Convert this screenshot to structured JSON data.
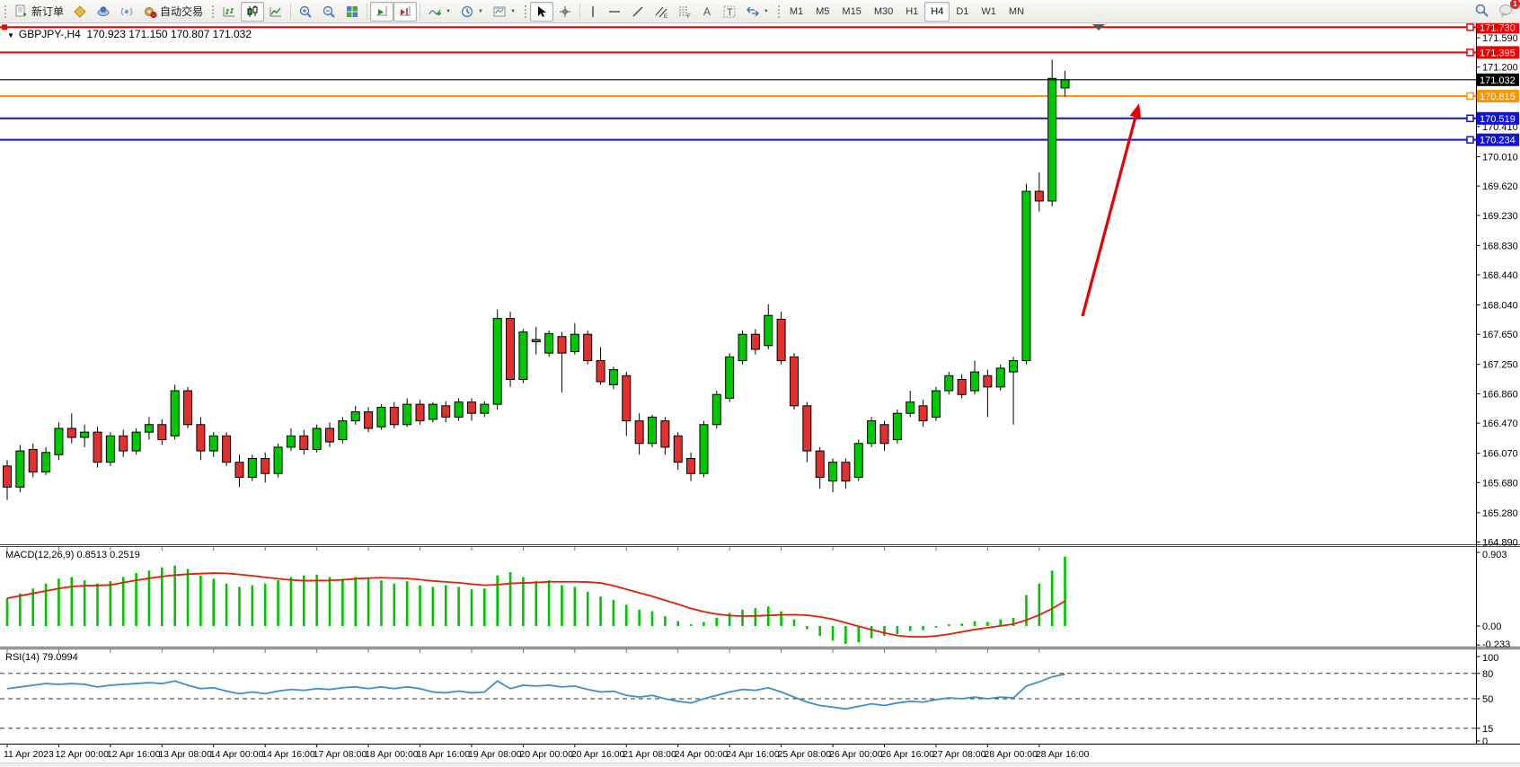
{
  "toolbar": {
    "new_order_label": "新订单",
    "algo_trading_label": "自动交易",
    "timeframes": [
      "M1",
      "M5",
      "M15",
      "M30",
      "H1",
      "H4",
      "D1",
      "W1",
      "MN"
    ],
    "active_timeframe": "H4",
    "notification_count": "1"
  },
  "header": {
    "symbol_period": "GBPJPY-,H4",
    "ohlc": "170.923 171.150 170.807 171.032"
  },
  "chart_data": {
    "type": "candlestick",
    "symbol": "GBPJPY-",
    "timeframe": "H4",
    "title": "GBPJPY-,H4",
    "current_candle": {
      "open": 170.923,
      "high": 171.15,
      "low": 170.807,
      "close": 171.032
    },
    "colors": {
      "up": "#00c800",
      "down": "#e03030",
      "wick": "#000000",
      "macd_hist": "#00c400",
      "macd_signal": "#e02000",
      "rsi_line": "#3e8ed0",
      "price_line": "#000000"
    },
    "y_ticks": [
      171.59,
      171.2,
      170.41,
      170.01,
      169.62,
      169.23,
      168.83,
      168.44,
      168.04,
      167.65,
      167.25,
      166.86,
      166.47,
      166.07,
      165.68,
      165.28,
      164.89
    ],
    "hlines": [
      {
        "price": 171.73,
        "color": "#f00000"
      },
      {
        "price": 171.395,
        "color": "#f00000"
      },
      {
        "price": 170.815,
        "color": "#ff9400"
      },
      {
        "price": 170.519,
        "color": "#1212dd"
      },
      {
        "price": 170.234,
        "color": "#1212dd"
      }
    ],
    "price_line": {
      "price": 171.032
    },
    "time_labels": [
      "11 Apr 2023",
      "12 Apr 00:00",
      "12 Apr 16:00",
      "13 Apr 08:00",
      "14 Apr 00:00",
      "14 Apr 16:00",
      "17 Apr 08:00",
      "18 Apr 00:00",
      "18 Apr 16:00",
      "19 Apr 08:00",
      "20 Apr 00:00",
      "20 Apr 16:00",
      "21 Apr 08:00",
      "24 Apr 00:00",
      "24 Apr 16:00",
      "25 Apr 08:00",
      "26 Apr 00:00",
      "26 Apr 16:00",
      "27 Apr 08:00",
      "28 Apr 00:00",
      "28 Apr 16:00"
    ],
    "candles": [
      [
        165.9,
        165.98,
        165.45,
        165.62
      ],
      [
        165.62,
        166.18,
        165.55,
        166.1
      ],
      [
        166.12,
        166.2,
        165.75,
        165.82
      ],
      [
        165.82,
        166.15,
        165.78,
        166.08
      ],
      [
        166.05,
        166.48,
        165.98,
        166.4
      ],
      [
        166.4,
        166.6,
        166.2,
        166.28
      ],
      [
        166.28,
        166.45,
        166.15,
        166.35
      ],
      [
        166.35,
        166.42,
        165.88,
        165.95
      ],
      [
        165.95,
        166.35,
        165.9,
        166.3
      ],
      [
        166.3,
        166.38,
        166.02,
        166.1
      ],
      [
        166.1,
        166.4,
        166.05,
        166.35
      ],
      [
        166.35,
        166.55,
        166.25,
        166.45
      ],
      [
        166.45,
        166.52,
        166.18,
        166.25
      ],
      [
        166.3,
        166.98,
        166.25,
        166.9
      ],
      [
        166.9,
        166.95,
        166.4,
        166.45
      ],
      [
        166.45,
        166.55,
        165.98,
        166.1
      ],
      [
        166.1,
        166.35,
        166.02,
        166.3
      ],
      [
        166.3,
        166.35,
        165.9,
        165.95
      ],
      [
        165.95,
        166.05,
        165.62,
        165.75
      ],
      [
        165.75,
        166.05,
        165.7,
        166.0
      ],
      [
        166.0,
        166.08,
        165.68,
        165.8
      ],
      [
        165.8,
        166.2,
        165.75,
        166.15
      ],
      [
        166.15,
        166.4,
        166.1,
        166.3
      ],
      [
        166.3,
        166.38,
        166.05,
        166.12
      ],
      [
        166.12,
        166.45,
        166.08,
        166.4
      ],
      [
        166.4,
        166.48,
        166.15,
        166.22
      ],
      [
        166.25,
        166.55,
        166.2,
        166.5
      ],
      [
        166.5,
        166.7,
        166.45,
        166.62
      ],
      [
        166.62,
        166.68,
        166.35,
        166.4
      ],
      [
        166.42,
        166.72,
        166.38,
        166.68
      ],
      [
        166.68,
        166.75,
        166.4,
        166.45
      ],
      [
        166.45,
        166.8,
        166.42,
        166.72
      ],
      [
        166.72,
        166.78,
        166.45,
        166.5
      ],
      [
        166.52,
        166.75,
        166.48,
        166.72
      ],
      [
        166.7,
        166.76,
        166.48,
        166.55
      ],
      [
        166.55,
        166.8,
        166.5,
        166.75
      ],
      [
        166.75,
        166.8,
        166.5,
        166.6
      ],
      [
        166.6,
        166.76,
        166.55,
        166.72
      ],
      [
        166.72,
        167.98,
        166.65,
        167.86
      ],
      [
        167.86,
        167.95,
        166.95,
        167.05
      ],
      [
        167.05,
        167.72,
        167.0,
        167.68
      ],
      [
        167.55,
        167.75,
        167.38,
        167.58
      ],
      [
        167.4,
        167.7,
        167.35,
        167.66
      ],
      [
        167.62,
        167.68,
        166.88,
        167.4
      ],
      [
        167.42,
        167.8,
        167.38,
        167.65
      ],
      [
        167.65,
        167.7,
        167.25,
        167.3
      ],
      [
        167.3,
        167.48,
        166.98,
        167.02
      ],
      [
        166.98,
        167.22,
        166.92,
        167.18
      ],
      [
        167.1,
        167.15,
        166.3,
        166.5
      ],
      [
        166.5,
        166.6,
        166.05,
        166.2
      ],
      [
        166.2,
        166.58,
        166.15,
        166.55
      ],
      [
        166.5,
        166.55,
        166.05,
        166.15
      ],
      [
        166.3,
        166.35,
        165.85,
        165.95
      ],
      [
        166.0,
        166.08,
        165.7,
        165.8
      ],
      [
        165.8,
        166.5,
        165.75,
        166.45
      ],
      [
        166.45,
        166.9,
        166.4,
        166.85
      ],
      [
        166.8,
        167.4,
        166.75,
        167.35
      ],
      [
        167.3,
        167.7,
        167.25,
        167.65
      ],
      [
        167.65,
        167.72,
        167.38,
        167.45
      ],
      [
        167.5,
        168.05,
        167.45,
        167.9
      ],
      [
        167.85,
        167.95,
        167.25,
        167.3
      ],
      [
        167.35,
        167.4,
        166.65,
        166.7
      ],
      [
        166.7,
        166.75,
        165.95,
        166.1
      ],
      [
        166.1,
        166.15,
        165.6,
        165.75
      ],
      [
        165.7,
        166.0,
        165.55,
        165.95
      ],
      [
        165.95,
        166.0,
        165.6,
        165.7
      ],
      [
        165.75,
        166.25,
        165.7,
        166.2
      ],
      [
        166.2,
        166.55,
        166.15,
        166.5
      ],
      [
        166.45,
        166.5,
        166.1,
        166.2
      ],
      [
        166.25,
        166.65,
        166.2,
        166.6
      ],
      [
        166.6,
        166.9,
        166.55,
        166.75
      ],
      [
        166.7,
        166.78,
        166.42,
        166.5
      ],
      [
        166.55,
        166.95,
        166.5,
        166.9
      ],
      [
        166.9,
        167.15,
        166.85,
        167.1
      ],
      [
        167.05,
        167.12,
        166.8,
        166.85
      ],
      [
        166.9,
        167.3,
        166.85,
        167.15
      ],
      [
        167.1,
        167.18,
        166.55,
        166.95
      ],
      [
        166.95,
        167.25,
        166.9,
        167.2
      ],
      [
        167.15,
        167.35,
        166.45,
        167.3
      ],
      [
        167.3,
        169.65,
        167.25,
        169.55
      ],
      [
        169.55,
        169.8,
        169.28,
        169.42
      ],
      [
        169.42,
        171.3,
        169.35,
        171.05
      ],
      [
        170.923,
        171.15,
        170.807,
        171.032
      ]
    ],
    "macd": {
      "label": "MACD(12,26,9) 0.8513 0.2519",
      "main_value": 0.8513,
      "signal_value": 0.2519,
      "ticks": [
        {
          "v": 0.903,
          "t": "0.903"
        },
        {
          "v": 0,
          "t": "0.00"
        },
        {
          "v": -0.233,
          "t": "-0.233"
        }
      ],
      "histogram": [
        0.34,
        0.4,
        0.46,
        0.52,
        0.58,
        0.6,
        0.56,
        0.52,
        0.55,
        0.6,
        0.65,
        0.68,
        0.72,
        0.74,
        0.7,
        0.62,
        0.58,
        0.52,
        0.48,
        0.5,
        0.52,
        0.56,
        0.6,
        0.62,
        0.63,
        0.6,
        0.58,
        0.6,
        0.58,
        0.56,
        0.52,
        0.55,
        0.5,
        0.48,
        0.5,
        0.48,
        0.45,
        0.46,
        0.62,
        0.66,
        0.6,
        0.55,
        0.56,
        0.5,
        0.48,
        0.42,
        0.36,
        0.32,
        0.26,
        0.2,
        0.18,
        0.12,
        0.06,
        0.02,
        0.05,
        0.1,
        0.16,
        0.2,
        0.22,
        0.24,
        0.18,
        0.08,
        -0.04,
        -0.12,
        -0.18,
        -0.22,
        -0.2,
        -0.15,
        -0.12,
        -0.1,
        -0.06,
        -0.05,
        -0.02,
        0.02,
        0.03,
        0.06,
        0.05,
        0.08,
        0.1,
        0.38,
        0.52,
        0.68,
        0.8513
      ]
    },
    "rsi": {
      "label": "RSI(14) 79.0994",
      "value": 79.0994,
      "levels": [
        80,
        50,
        15
      ],
      "ticks": [
        {
          "v": 100,
          "t": "100"
        },
        {
          "v": 80,
          "t": "80"
        },
        {
          "v": 50,
          "t": "50"
        },
        {
          "v": 15,
          "t": "15"
        },
        {
          "v": 0,
          "t": "0"
        }
      ],
      "values": [
        62,
        64,
        66,
        68,
        67,
        68,
        67,
        64,
        66,
        67,
        68,
        69,
        68,
        71,
        66,
        62,
        63,
        59,
        56,
        58,
        56,
        59,
        61,
        60,
        62,
        61,
        63,
        64,
        62,
        64,
        62,
        64,
        62,
        58,
        57,
        59,
        57,
        58,
        71,
        62,
        66,
        65,
        66,
        64,
        65,
        61,
        58,
        59,
        54,
        52,
        54,
        50,
        47,
        45,
        50,
        54,
        58,
        61,
        60,
        63,
        58,
        52,
        46,
        42,
        40,
        38,
        41,
        44,
        42,
        45,
        47,
        46,
        49,
        51,
        50,
        52,
        50,
        52,
        51,
        65,
        70,
        76,
        79.0994
      ]
    },
    "arrow": {
      "from": [
        1205,
        352
      ],
      "to": [
        1268,
        115
      ],
      "color": "#e80000"
    }
  }
}
